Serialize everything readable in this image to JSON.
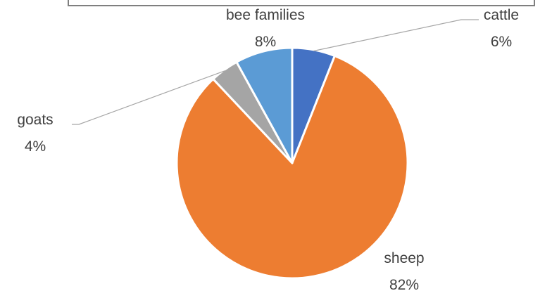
{
  "chart_data": {
    "type": "pie",
    "title": "",
    "slices": [
      {
        "label": "cattle",
        "value": 6,
        "display": "6%",
        "color": "#4472C4"
      },
      {
        "label": "sheep",
        "value": 82,
        "display": "82%",
        "color": "#ED7D31"
      },
      {
        "label": "goats",
        "value": 4,
        "display": "4%",
        "color": "#A5A5A5"
      },
      {
        "label": "bee families",
        "value": 8,
        "display": "8%",
        "color": "#5B9BD5"
      }
    ],
    "start_angle_deg": 0,
    "direction": "clockwise",
    "legend": "none",
    "data_labels": "outside with leader lines"
  }
}
